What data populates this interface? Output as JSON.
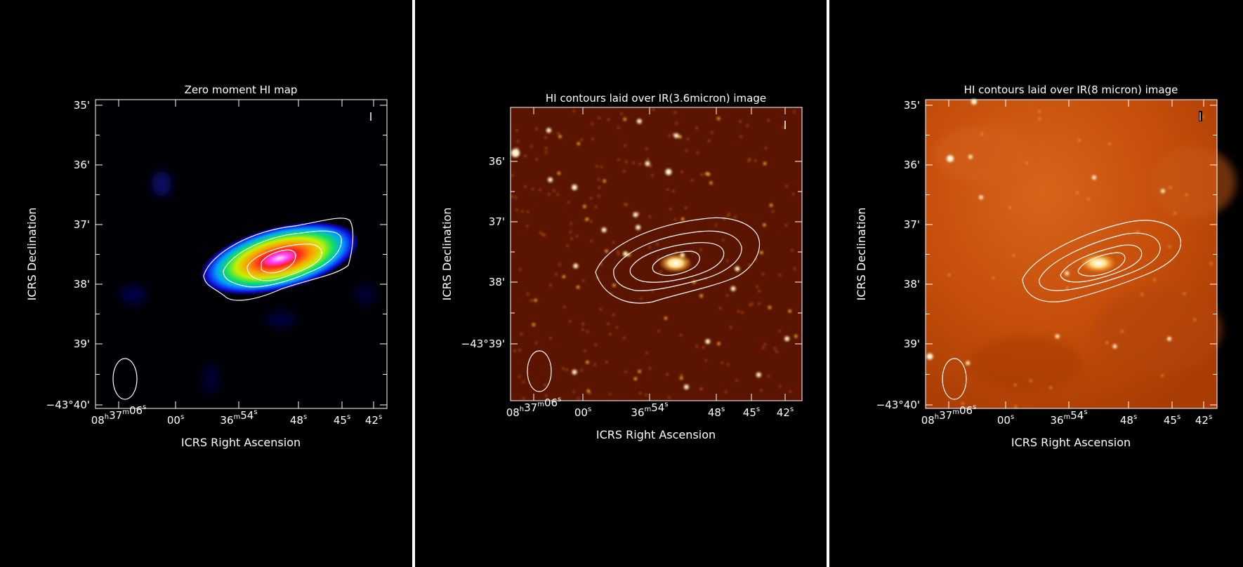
{
  "panels": [
    {
      "title": "Zero moment HI map",
      "image": "HI zero-moment color map (blue-green-yellow-red-magenta) with white contours",
      "xlabel": "ICRS Right Ascension",
      "ylabel": "ICRS Declination",
      "dec_ticks": [
        "35'",
        "36'",
        "37'",
        "38'",
        "39'",
        "−43°40'"
      ],
      "ra_ticks": [
        {
          "h": "08",
          "m": "37",
          "s": "06"
        },
        {
          "h": "",
          "m": "",
          "s": "00"
        },
        {
          "h": "",
          "m": "36",
          "s": "54"
        },
        {
          "h": "",
          "m": "",
          "s": "48"
        },
        {
          "h": "",
          "m": "",
          "s": "45"
        },
        {
          "h": "",
          "m": "",
          "s": "42"
        }
      ]
    },
    {
      "title": "HI contours laid over IR(3.6micron) image",
      "image": "IR 3.6 micron star field (orange) with white HI contours",
      "xlabel": "ICRS Right Ascension",
      "ylabel": "ICRS Declination",
      "dec_ticks": [
        "36'",
        "37'",
        "38'",
        "−43°39'"
      ],
      "ra_ticks": [
        {
          "h": "08",
          "m": "37",
          "s": "06"
        },
        {
          "h": "",
          "m": "",
          "s": "00"
        },
        {
          "h": "",
          "m": "36",
          "s": "54"
        },
        {
          "h": "",
          "m": "",
          "s": "48"
        },
        {
          "h": "",
          "m": "",
          "s": "45"
        },
        {
          "h": "",
          "m": "",
          "s": "42"
        }
      ]
    },
    {
      "title": "HI contours laid over IR(8 micron) image",
      "image": "IR 8 micron diffuse emission (orange) with white HI contours",
      "xlabel": "ICRS Right Ascension",
      "ylabel": "ICRS Declination",
      "dec_ticks": [
        "35'",
        "36'",
        "37'",
        "38'",
        "39'",
        "−43°40'"
      ],
      "ra_ticks": [
        {
          "h": "08",
          "m": "37",
          "s": "06"
        },
        {
          "h": "",
          "m": "",
          "s": "00"
        },
        {
          "h": "",
          "m": "36",
          "s": "54"
        },
        {
          "h": "",
          "m": "",
          "s": "48"
        },
        {
          "h": "",
          "m": "",
          "s": "45"
        },
        {
          "h": "",
          "m": "",
          "s": "42"
        }
      ]
    }
  ],
  "colors": {
    "background": "#000000",
    "divider": "#ffffff",
    "ir_dark": "#5a1400",
    "ir_light": "#c5520c"
  }
}
